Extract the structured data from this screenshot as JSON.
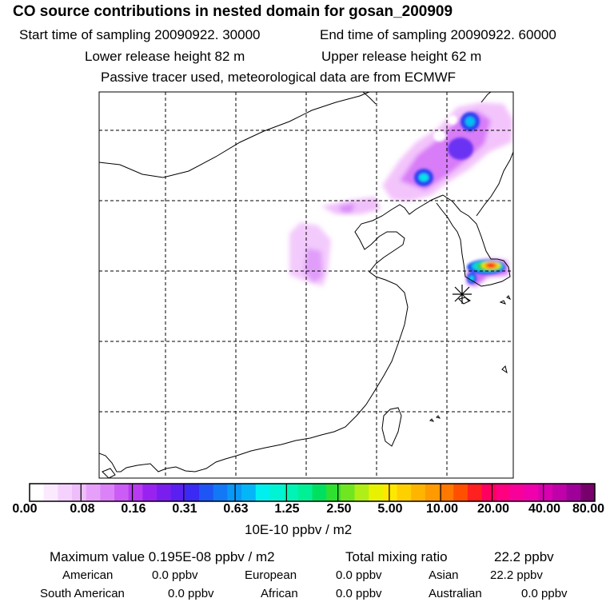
{
  "header": {
    "title": "CO  source contributions in nested domain for gosan_200909",
    "start_label": "Start time of sampling 20090922. 30000",
    "end_label": "End time of sampling 20090922. 60000",
    "lower_label": "Lower release height   82 m",
    "upper_label": "Upper release height   62 m",
    "note": "Passive tracer used, meteorological data are from ECMWF"
  },
  "colorbar": {
    "unit": "10E-10 ppbv / m2",
    "ticks": [
      "0.00",
      "0.08",
      "0.16",
      "0.31",
      "0.63",
      "1.25",
      "2.50",
      "5.00",
      "10.00",
      "20.00",
      "40.00",
      "80.00"
    ],
    "colors": [
      "#ffffff",
      "#fbeafe",
      "#f5d2fd",
      "#eebefb",
      "#e7a0fa",
      "#dc82f8",
      "#cc5cf6",
      "#b83af3",
      "#9a22f0",
      "#7a1ef0",
      "#5a20f2",
      "#3a2af4",
      "#1e56f5",
      "#1278f6",
      "#0a98f7",
      "#04b6f8",
      "#00f0f0",
      "#00f4d4",
      "#00f4b6",
      "#00f096",
      "#00e060",
      "#30e030",
      "#70e620",
      "#b0ee18",
      "#e8f200",
      "#ffe800",
      "#ffd000",
      "#ffb400",
      "#ff9a00",
      "#ff7800",
      "#ff5000",
      "#ff2020",
      "#ff0060",
      "#ff0080",
      "#f8009a",
      "#f000ac",
      "#d800b0",
      "#c000a8",
      "#a0009a",
      "#78006c"
    ]
  },
  "stats": {
    "max_label": "Maximum value  0.195E-08 ppbv / m2",
    "total_label": "Total mixing ratio",
    "total_value": "22.2 ppbv",
    "regions": [
      {
        "name": "American",
        "value": "0.0 ppbv"
      },
      {
        "name": "European",
        "value": "0.0 ppbv"
      },
      {
        "name": "Asian",
        "value": "22.2 ppbv"
      },
      {
        "name": "South American",
        "value": "0.0 ppbv"
      },
      {
        "name": "African",
        "value": "0.0 ppbv"
      },
      {
        "name": "Australian",
        "value": "0.0 ppbv"
      }
    ]
  },
  "map": {
    "receptor_marker": "asterisk-icon",
    "plume_colors": {
      "light": "#f3c4fb",
      "mid": "#d87cf8",
      "purple": "#b040f0",
      "blue": "#2050f0",
      "cyan": "#00e8e8",
      "green": "#20d040",
      "yellow": "#f0e800",
      "orange": "#ff8a00",
      "red": "#ff2020"
    }
  }
}
